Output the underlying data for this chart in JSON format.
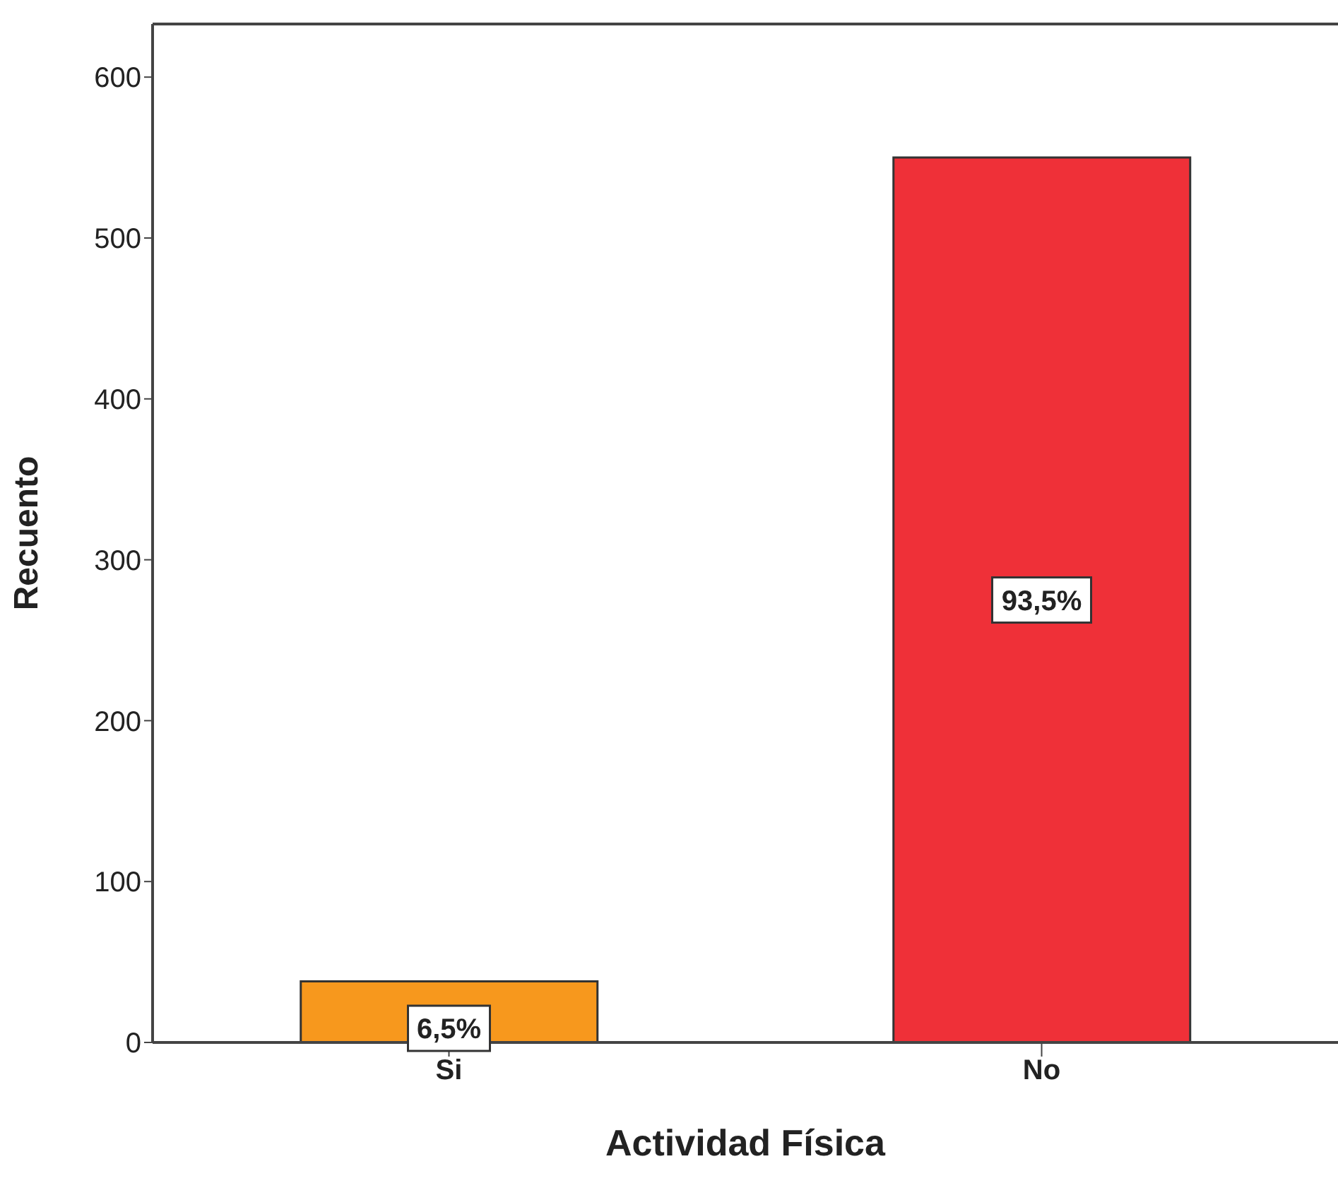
{
  "chart_data": {
    "type": "bar",
    "xlabel": "Actividad Física",
    "ylabel": "Recuento",
    "categories": [
      "Si",
      "No"
    ],
    "values": [
      38,
      550
    ],
    "colors": [
      "#f7981d",
      "#ef3038"
    ],
    "annotations": [
      "6,5%",
      "93,5%"
    ],
    "ylim": [
      0,
      633
    ],
    "yticks": [
      0,
      100,
      200,
      300,
      400,
      500,
      600
    ]
  }
}
